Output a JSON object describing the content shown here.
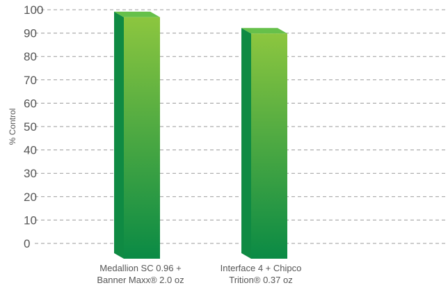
{
  "chart_data": {
    "type": "bar",
    "title": "",
    "xlabel": "",
    "ylabel": "% Control",
    "ylim": [
      0,
      100
    ],
    "yticks": [
      0,
      10,
      20,
      30,
      40,
      50,
      60,
      70,
      80,
      90,
      100
    ],
    "grid": true,
    "categories": [
      [
        "Medallion SC 0.96 +",
        "Banner Maxx® 2.0 oz"
      ],
      [
        "Interface 4 + Chipco",
        "Trition® 0.37 oz"
      ]
    ],
    "values": [
      98,
      91
    ],
    "colors": {
      "bar_top": "#8cc63f",
      "bar_bottom": "#0a8a45",
      "bar_side": "#0f8a43",
      "bar_cap": "#66c04a"
    }
  }
}
